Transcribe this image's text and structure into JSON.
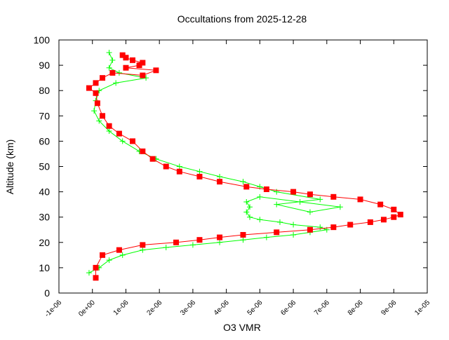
{
  "chart_data": {
    "type": "line",
    "title": "Occultations from 2025-12-28",
    "xlabel": "O3 VMR",
    "ylabel": "Altitude (km)",
    "xlim": [
      -1e-06,
      1e-05
    ],
    "ylim": [
      0,
      100
    ],
    "grid": false,
    "legend": "none",
    "x_tick_labels": [
      "-1e-06",
      "0e+00",
      "1e-06",
      "2e-06",
      "3e-06",
      "4e-06",
      "5e-06",
      "6e-06",
      "7e-06",
      "8e-06",
      "9e-06",
      "1e-05"
    ],
    "x_ticks": [
      -1e-06,
      0,
      1e-06,
      2e-06,
      3e-06,
      4e-06,
      5e-06,
      6e-06,
      7e-06,
      8e-06,
      9e-06,
      1e-05
    ],
    "y_tick_labels": [
      "0",
      "10",
      "20",
      "30",
      "40",
      "50",
      "60",
      "70",
      "80",
      "90",
      "100"
    ],
    "y_ticks": [
      0,
      10,
      20,
      30,
      40,
      50,
      60,
      70,
      80,
      90,
      100
    ],
    "series": [
      {
        "color": "#00ff00",
        "marker": "plus",
        "points": [
          [
            -1e-07,
            8
          ],
          [
            2e-07,
            10
          ],
          [
            5e-07,
            13
          ],
          [
            9e-07,
            15
          ],
          [
            1.5e-06,
            17
          ],
          [
            2.2e-06,
            18
          ],
          [
            3e-06,
            19
          ],
          [
            3.8e-06,
            20
          ],
          [
            4.5e-06,
            21
          ],
          [
            5.2e-06,
            22
          ],
          [
            6e-06,
            23
          ],
          [
            6.5e-06,
            24
          ],
          [
            7e-06,
            25
          ],
          [
            6.8e-06,
            26
          ],
          [
            6e-06,
            27
          ],
          [
            5.6e-06,
            28
          ],
          [
            5e-06,
            29
          ],
          [
            4.7e-06,
            30
          ],
          [
            4.6e-06,
            32
          ],
          [
            4.7e-06,
            34
          ],
          [
            4.6e-06,
            36
          ],
          [
            5e-06,
            38
          ],
          [
            6.2e-06,
            36
          ],
          [
            7.4e-06,
            34
          ],
          [
            6.5e-06,
            32
          ],
          [
            5.5e-06,
            35
          ],
          [
            6.8e-06,
            37
          ],
          [
            5.5e-06,
            40
          ],
          [
            5e-06,
            42
          ],
          [
            4.5e-06,
            44
          ],
          [
            3.8e-06,
            46
          ],
          [
            3.2e-06,
            48
          ],
          [
            2.6e-06,
            50
          ],
          [
            1.9e-06,
            53
          ],
          [
            1.4e-06,
            56
          ],
          [
            9e-07,
            60
          ],
          [
            5e-07,
            64
          ],
          [
            2e-07,
            68
          ],
          [
            5e-08,
            72
          ],
          [
            1e-07,
            76
          ],
          [
            2e-07,
            80
          ],
          [
            7e-07,
            83
          ],
          [
            1.6e-06,
            85
          ],
          [
            8e-07,
            87
          ],
          [
            5e-07,
            89
          ],
          [
            6e-07,
            92
          ],
          [
            5e-07,
            95
          ]
        ]
      },
      {
        "color": "#ff0000",
        "marker": "square",
        "points": [
          [
            1e-07,
            6
          ],
          [
            1e-07,
            10
          ],
          [
            3e-07,
            15
          ],
          [
            8e-07,
            17
          ],
          [
            1.5e-06,
            19
          ],
          [
            2.5e-06,
            20
          ],
          [
            3.2e-06,
            21
          ],
          [
            3.8e-06,
            22
          ],
          [
            4.5e-06,
            23
          ],
          [
            5.5e-06,
            24
          ],
          [
            6.5e-06,
            25
          ],
          [
            7.2e-06,
            26
          ],
          [
            7.7e-06,
            27
          ],
          [
            8.3e-06,
            28
          ],
          [
            8.7e-06,
            29
          ],
          [
            9e-06,
            30
          ],
          [
            9.2e-06,
            31
          ],
          [
            9e-06,
            33
          ],
          [
            8.6e-06,
            35
          ],
          [
            8e-06,
            37
          ],
          [
            7.2e-06,
            38
          ],
          [
            6.5e-06,
            39
          ],
          [
            6e-06,
            40
          ],
          [
            5.2e-06,
            41
          ],
          [
            4.6e-06,
            42
          ],
          [
            3.8e-06,
            44
          ],
          [
            3.2e-06,
            46
          ],
          [
            2.6e-06,
            48
          ],
          [
            2.2e-06,
            50
          ],
          [
            1.8e-06,
            53
          ],
          [
            1.5e-06,
            56
          ],
          [
            1.2e-06,
            60
          ],
          [
            8e-07,
            63
          ],
          [
            5e-07,
            66
          ],
          [
            3e-07,
            70
          ],
          [
            1.5e-07,
            75
          ],
          [
            1e-07,
            79
          ],
          [
            -1e-07,
            81
          ],
          [
            1e-07,
            83
          ],
          [
            3e-07,
            85
          ],
          [
            6e-07,
            87
          ],
          [
            1.5e-06,
            86
          ],
          [
            1.9e-06,
            88
          ],
          [
            1e-06,
            89
          ],
          [
            1.4e-06,
            90
          ],
          [
            1.5e-06,
            91
          ],
          [
            1.2e-06,
            92
          ],
          [
            1e-06,
            93
          ],
          [
            9e-07,
            94
          ]
        ]
      }
    ]
  }
}
